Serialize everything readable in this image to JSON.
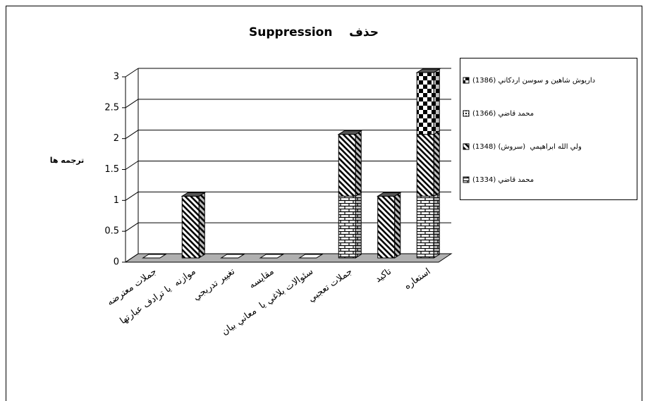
{
  "chart_data": {
    "type": "bar3d_stacked",
    "title": "حذف    Suppression",
    "y_label": "ترجمه ها",
    "categories": [
      "جملات معترضه",
      "موازنه  يا ترادف عبارتها",
      "تغيير تدريجي",
      "مقايسه",
      "سئوالات بلاغي يا  معاني بيان",
      "جملات تعجبي",
      "تاکيد",
      "استعاره"
    ],
    "series": [
      {
        "name": "محمد قاضي (1334)",
        "color": "#000000",
        "pattern": "brick",
        "values": [
          0,
          0,
          0,
          0,
          0,
          1,
          0,
          1
        ]
      },
      {
        "name": "ولي الله ابراهيمي  (سروش) (1348)",
        "color": "#000000",
        "pattern": "diagonal",
        "values": [
          0,
          1,
          0,
          0,
          0,
          1,
          1,
          1
        ]
      },
      {
        "name": "محمد قاضي (1366)",
        "color": "#000000",
        "pattern": "dots",
        "values": [
          0,
          0,
          0,
          0,
          0,
          0,
          0,
          0
        ]
      },
      {
        "name": "داريوش شاهين و سوسن اردکاني (1386)",
        "color": "#000000",
        "pattern": "checker",
        "values": [
          0,
          0,
          0,
          0,
          0,
          0,
          0,
          1
        ]
      }
    ],
    "ylim": [
      0,
      3
    ],
    "yticks": [
      0,
      0.5,
      1,
      1.5,
      2,
      2.5,
      3
    ],
    "grid": true,
    "legend": "right"
  }
}
